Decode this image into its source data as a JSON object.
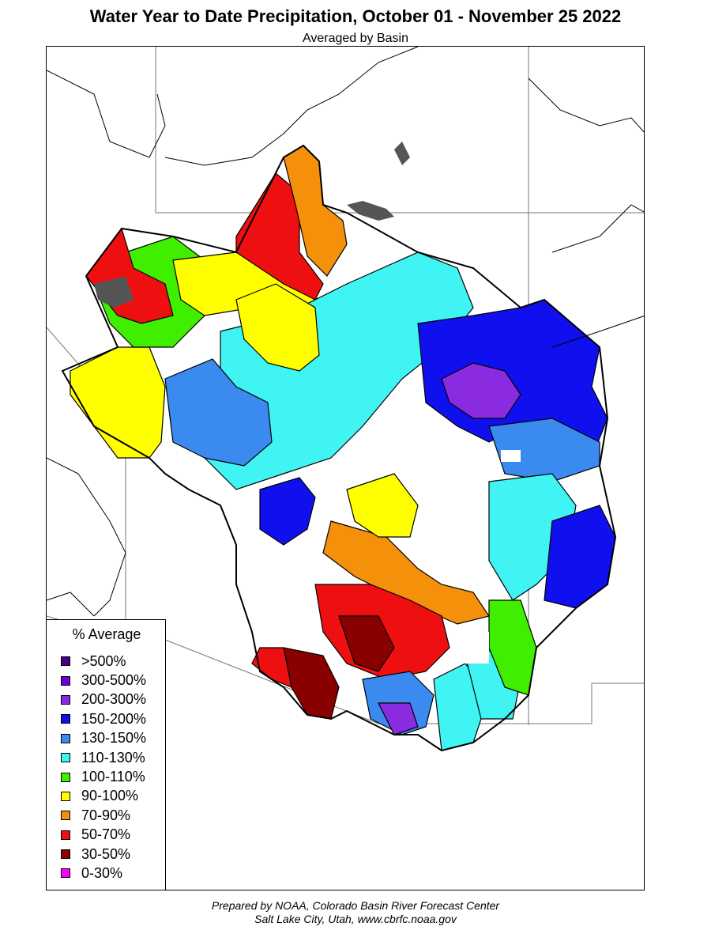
{
  "header": {
    "title": "Water Year to Date Precipitation, October 01  - November 25 2022",
    "subtitle": "Averaged by Basin"
  },
  "legend": {
    "title": "% Average",
    "items": [
      {
        "label": ">500%",
        "color": "#4b0082"
      },
      {
        "label": "300-500%",
        "color": "#6a00d8"
      },
      {
        "label": "200-300%",
        "color": "#8a2be2"
      },
      {
        "label": "150-200%",
        "color": "#1010ee"
      },
      {
        "label": "130-150%",
        "color": "#3a8af0"
      },
      {
        "label": "110-130%",
        "color": "#40f4f4"
      },
      {
        "label": "100-110%",
        "color": "#40ee00"
      },
      {
        "label": "90-100%",
        "color": "#ffff00"
      },
      {
        "label": "70-90%",
        "color": "#f4900a"
      },
      {
        "label": "50-70%",
        "color": "#ee1010"
      },
      {
        "label": "30-50%",
        "color": "#880000"
      },
      {
        "label": "0-30%",
        "color": "#ff00ff"
      }
    ]
  },
  "footer": {
    "line1": "Prepared by NOAA, Colorado Basin River Forecast Center",
    "line2": "Salt Lake City, Utah, www.cbrfc.noaa.gov"
  },
  "map": {
    "water_color": "#555555",
    "boundary_color": "#000000",
    "state_line_color": "#777777"
  }
}
